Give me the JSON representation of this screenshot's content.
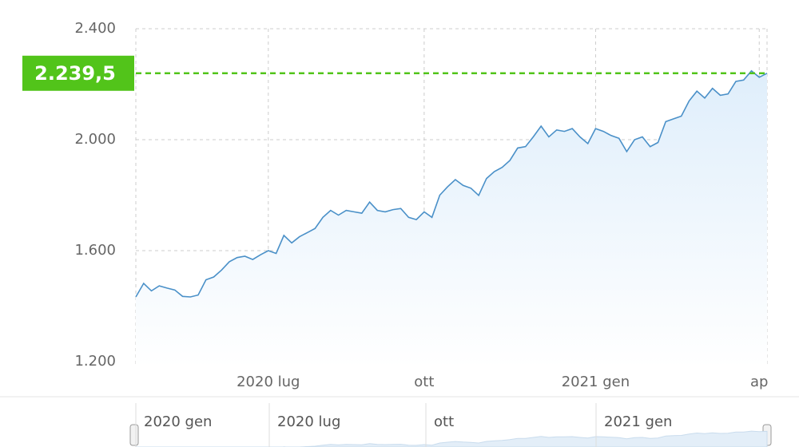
{
  "chart_data": {
    "type": "area",
    "categories": [
      null,
      null,
      null,
      null,
      null,
      null,
      null,
      null,
      null,
      null,
      null,
      null,
      null,
      null,
      null,
      null,
      null,
      "2020 lug",
      null,
      null,
      null,
      null,
      null,
      null,
      null,
      null,
      null,
      null,
      null,
      null,
      null,
      null,
      null,
      null,
      null,
      null,
      null,
      "ott",
      null,
      null,
      null,
      null,
      null,
      null,
      null,
      null,
      null,
      null,
      null,
      null,
      null,
      null,
      null,
      null,
      null,
      null,
      null,
      null,
      null,
      "2021 gen",
      null,
      null,
      null,
      null,
      null,
      null,
      null,
      null,
      null,
      null,
      null,
      null,
      null,
      null,
      null,
      null,
      null,
      null,
      null,
      null,
      "ap",
      null
    ],
    "series": [
      {
        "color": "#4a90c8",
        "values": [
          1433,
          1482,
          1455,
          1473,
          1465,
          1458,
          1435,
          1433,
          1440,
          1495,
          1505,
          1530,
          1560,
          1575,
          1580,
          1568,
          1585,
          1600,
          1590,
          1655,
          1628,
          1650,
          1665,
          1680,
          1720,
          1745,
          1728,
          1745,
          1740,
          1735,
          1775,
          1745,
          1740,
          1748,
          1752,
          1720,
          1712,
          1740,
          1720,
          1800,
          1830,
          1856,
          1835,
          1825,
          1799,
          1860,
          1885,
          1900,
          1925,
          1970,
          1975,
          2010,
          2049,
          2010,
          2035,
          2030,
          2040,
          2010,
          1986,
          2040,
          2030,
          2015,
          2005,
          1957,
          2000,
          2010,
          1975,
          1990,
          2065,
          2075,
          2085,
          2140,
          2175,
          2150,
          2185,
          2160,
          2165,
          2210,
          2215,
          2248,
          2225,
          2239.5
        ]
      }
    ],
    "ylim": [
      1200,
      2400
    ],
    "yticks": [
      {
        "value": 1200,
        "label": "1.200"
      },
      {
        "value": 1600,
        "label": "1.600"
      },
      {
        "value": 2000,
        "label": "2.000"
      },
      {
        "value": 2400,
        "label": "2.400"
      }
    ],
    "grid": true,
    "price_marker": {
      "value": 2239.5,
      "label": "2.239,5",
      "color": "#52c41a"
    },
    "navigator": {
      "labels": [
        "2020 gen",
        "2020 lug",
        "ott",
        "2021 gen"
      ]
    }
  }
}
